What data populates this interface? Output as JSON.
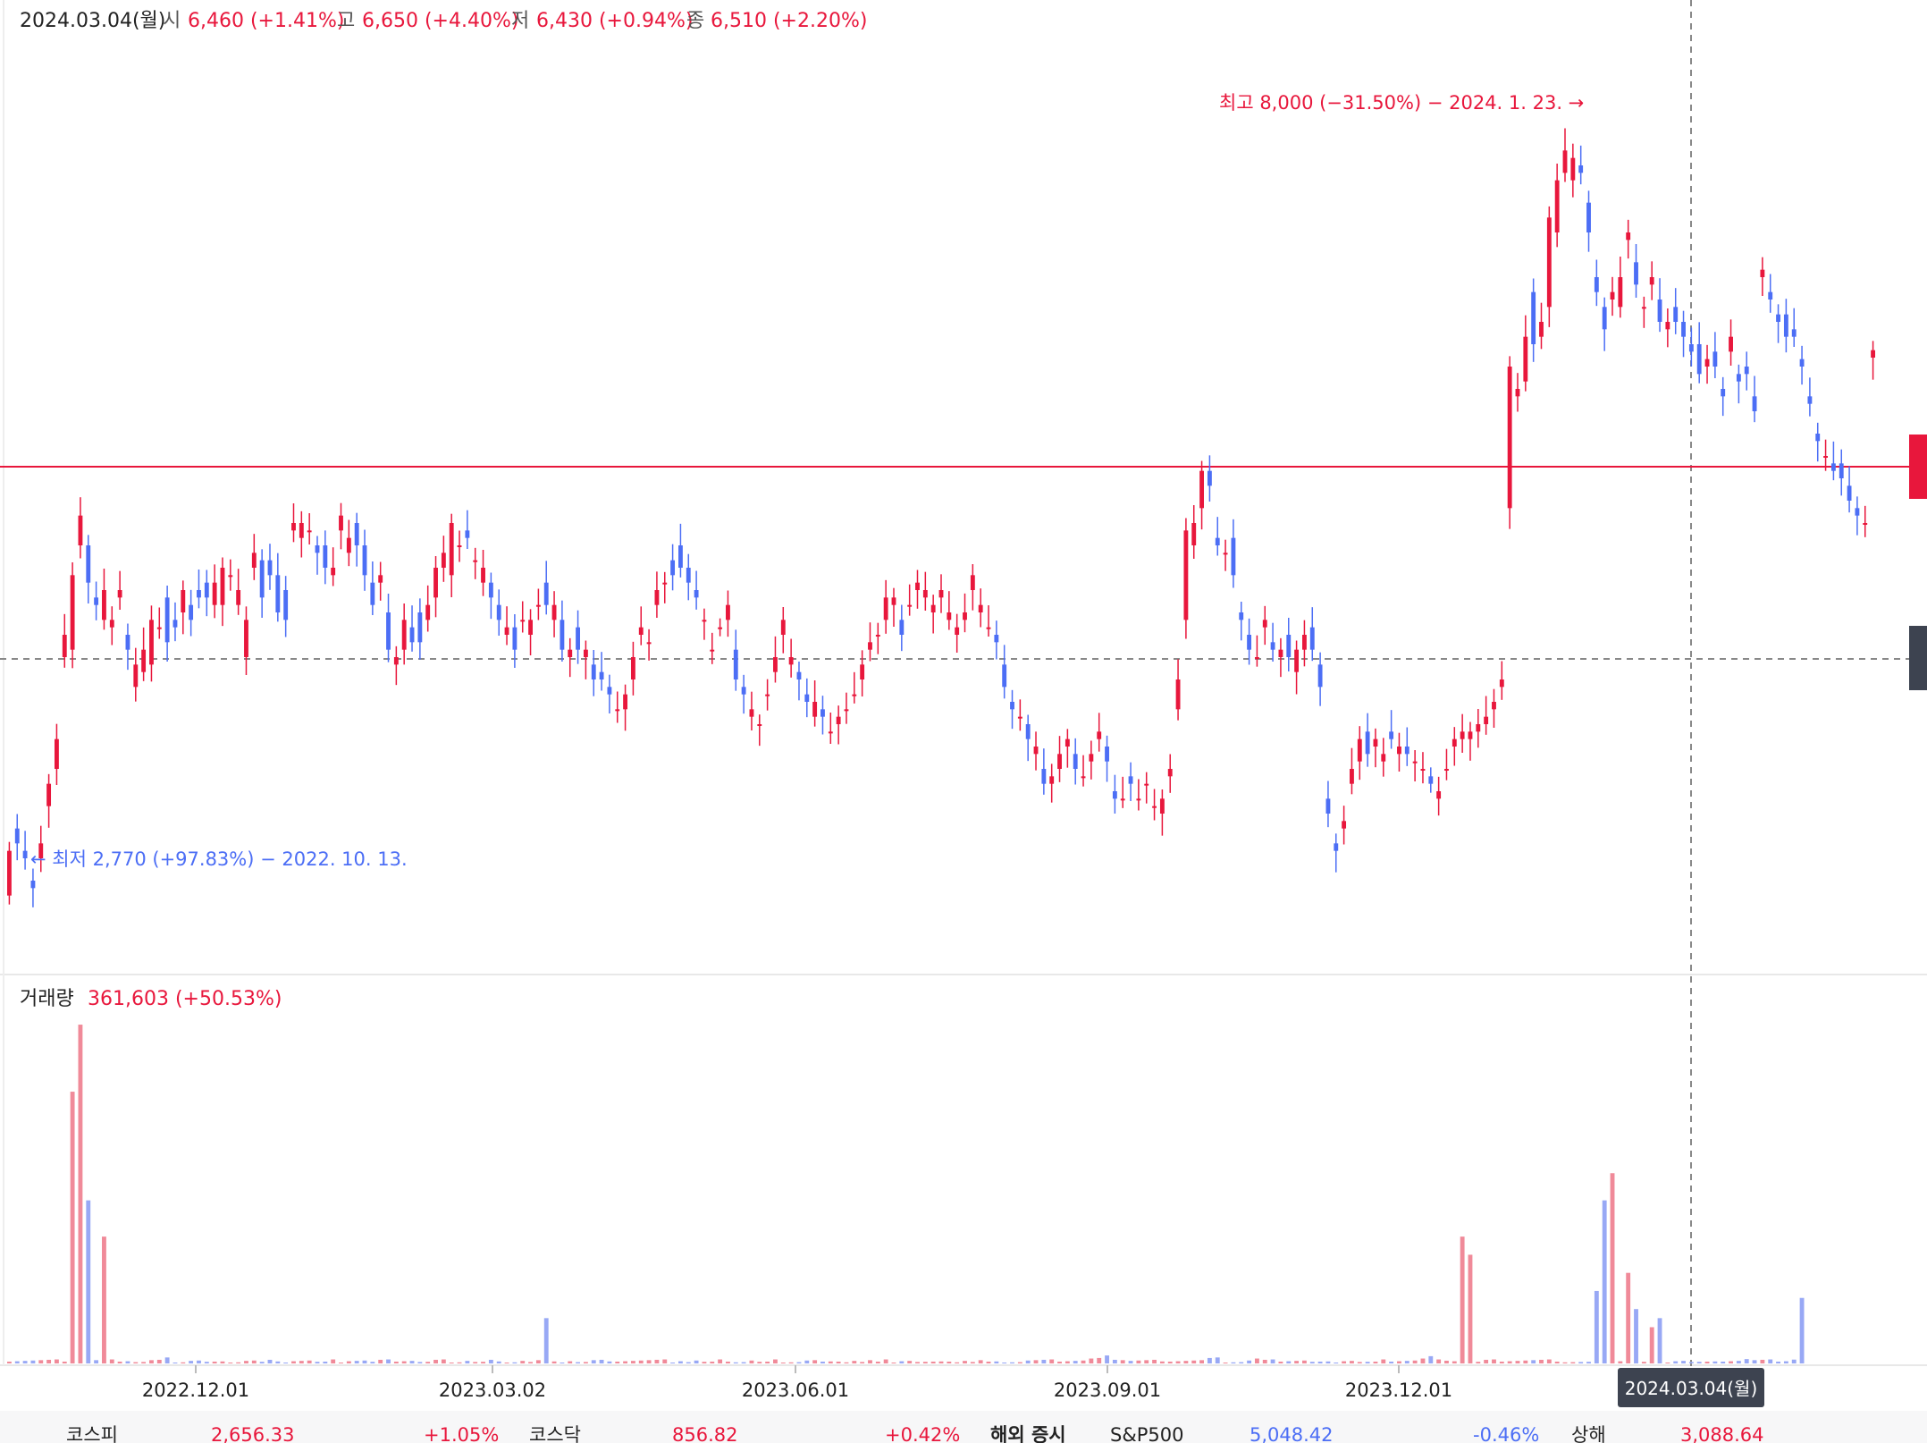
{
  "colors": {
    "up": "#e8173c",
    "down": "#4c6ef5",
    "up_volume": "#f08a99",
    "down_volume": "#98a8f5",
    "neutral": "#888888",
    "text": "#222222"
  },
  "header": {
    "date": "2024.03.04(월)",
    "open_label": "시",
    "open_value": "6,460 (+1.41%)",
    "high_label": "고",
    "high_value": "6,650 (+4.40%)",
    "low_label": "저",
    "low_value": "6,430 (+0.94%)",
    "close_label": "종",
    "close_value": "6,510 (+2.20%)"
  },
  "annotations": {
    "high": "최고 8,000 (−31.50%) − 2024. 1. 23. →",
    "low": "← 최저 2,770 (+97.83%) − 2022. 10. 13."
  },
  "volume_header": {
    "label": "거래량",
    "value": "361,603 (+50.53%)"
  },
  "crosshair_label": "2024.03.04(월)",
  "bottom_ticker": [
    {
      "label": "코스피",
      "value": "2,656.33",
      "change": "+1.05%"
    },
    {
      "label": "코스닥",
      "value": "856.82",
      "change": "+0.42%"
    },
    {
      "label": "해외 증시",
      "value": "",
      "change": ""
    },
    {
      "label": "S&P500",
      "value": "5,048.42",
      "change": "-0.46%"
    },
    {
      "label": "상해",
      "value": "3,088.64",
      "change": ""
    }
  ],
  "chart_data": {
    "type": "candlestick",
    "x_tick_labels": [
      "2022.12.01",
      "2023.03.02",
      "2023.06.01",
      "2023.09.01",
      "2023.12.01"
    ],
    "period": [
      "2022.10",
      "2024.03"
    ],
    "ylim": [
      2500,
      8500
    ],
    "volume_ylim": [
      0,
      1900000
    ],
    "price_series": [
      [
        2850,
        3150
      ],
      [
        3300,
        3200
      ],
      [
        3150,
        3100
      ],
      [
        2950,
        2900
      ],
      [
        3100,
        3200
      ],
      [
        3450,
        3600
      ],
      [
        3700,
        3900
      ],
      [
        4450,
        4600
      ],
      [
        4500,
        5000
      ],
      [
        5200,
        5400
      ],
      [
        5200,
        4950
      ],
      [
        4850,
        4800
      ],
      [
        4700,
        4900
      ],
      [
        4650,
        4700
      ],
      [
        4850,
        4900
      ],
      [
        4600,
        4500
      ],
      [
        4250,
        4400
      ],
      [
        4350,
        4500
      ],
      [
        4400,
        4700
      ],
      [
        4650,
        4650
      ],
      [
        4850,
        4550
      ],
      [
        4700,
        4650
      ],
      [
        4750,
        4900
      ],
      [
        4800,
        4700
      ],
      [
        4900,
        4850
      ],
      [
        4950,
        4850
      ],
      [
        4800,
        4950
      ],
      [
        4800,
        5050
      ],
      [
        5000,
        5000
      ],
      [
        4800,
        4900
      ],
      [
        4450,
        4700
      ],
      [
        5050,
        5150
      ],
      [
        5100,
        4850
      ],
      [
        5100,
        5000
      ],
      [
        5000,
        4750
      ],
      [
        4900,
        4700
      ],
      [
        5300,
        5350
      ],
      [
        5250,
        5350
      ],
      [
        5300,
        5300
      ],
      [
        5200,
        5150
      ],
      [
        5200,
        5050
      ],
      [
        5000,
        5050
      ],
      [
        5300,
        5400
      ],
      [
        5150,
        5250
      ],
      [
        5350,
        5200
      ],
      [
        5200,
        5000
      ],
      [
        4950,
        4800
      ],
      [
        4950,
        5000
      ],
      [
        4750,
        4500
      ],
      [
        4400,
        4450
      ],
      [
        4500,
        4700
      ],
      [
        4650,
        4550
      ],
      [
        4750,
        4550
      ],
      [
        4700,
        4800
      ],
      [
        4850,
        5050
      ],
      [
        5050,
        5150
      ],
      [
        5000,
        5350
      ],
      [
        5200,
        5200
      ],
      [
        5300,
        5250
      ],
      [
        5100,
        5100
      ],
      [
        4950,
        5050
      ],
      [
        4950,
        4850
      ],
      [
        4800,
        4700
      ],
      [
        4600,
        4650
      ],
      [
        4650,
        4500
      ],
      [
        4700,
        4700
      ],
      [
        4600,
        4700
      ],
      [
        4800,
        4800
      ],
      [
        4950,
        4800
      ],
      [
        4700,
        4800
      ],
      [
        4700,
        4500
      ],
      [
        4450,
        4500
      ],
      [
        4650,
        4500
      ],
      [
        4450,
        4500
      ],
      [
        4400,
        4300
      ],
      [
        4350,
        4300
      ],
      [
        4250,
        4200
      ],
      [
        4100,
        4100
      ],
      [
        4100,
        4200
      ],
      [
        4300,
        4450
      ],
      [
        4600,
        4650
      ],
      [
        4550,
        4550
      ],
      [
        4800,
        4900
      ],
      [
        4950,
        4950
      ],
      [
        5100,
        5000
      ],
      [
        5200,
        5050
      ],
      [
        5050,
        4950
      ],
      [
        4900,
        4850
      ],
      [
        4700,
        4700
      ],
      [
        4500,
        4500
      ],
      [
        4650,
        4650
      ],
      [
        4700,
        4800
      ],
      [
        4500,
        4300
      ],
      [
        4250,
        4200
      ],
      [
        4050,
        4100
      ],
      [
        4000,
        4000
      ],
      [
        4200,
        4200
      ],
      [
        4350,
        4450
      ],
      [
        4600,
        4700
      ],
      [
        4400,
        4450
      ],
      [
        4350,
        4300
      ],
      [
        4200,
        4150
      ],
      [
        4050,
        4150
      ],
      [
        4100,
        4050
      ],
      [
        3950,
        3950
      ],
      [
        4000,
        4050
      ],
      [
        4100,
        4100
      ],
      [
        4200,
        4200
      ],
      [
        4300,
        4400
      ],
      [
        4500,
        4550
      ],
      [
        4600,
        4600
      ],
      [
        4700,
        4850
      ],
      [
        4800,
        4850
      ],
      [
        4700,
        4600
      ],
      [
        4800,
        4800
      ],
      [
        4900,
        4950
      ],
      [
        4850,
        4900
      ],
      [
        4750,
        4800
      ],
      [
        4850,
        4900
      ],
      [
        4700,
        4750
      ],
      [
        4600,
        4650
      ],
      [
        4700,
        4750
      ],
      [
        4900,
        5000
      ],
      [
        4750,
        4800
      ],
      [
        4650,
        4650
      ],
      [
        4600,
        4550
      ],
      [
        4400,
        4250
      ],
      [
        4150,
        4100
      ],
      [
        4050,
        4050
      ],
      [
        4000,
        3900
      ],
      [
        3800,
        3850
      ],
      [
        3700,
        3600
      ],
      [
        3600,
        3650
      ],
      [
        3700,
        3800
      ],
      [
        3850,
        3900
      ],
      [
        3800,
        3700
      ],
      [
        3650,
        3650
      ],
      [
        3750,
        3800
      ],
      [
        3900,
        3950
      ],
      [
        3850,
        3750
      ],
      [
        3550,
        3500
      ],
      [
        3500,
        3500
      ],
      [
        3650,
        3600
      ],
      [
        3500,
        3500
      ],
      [
        3600,
        3600
      ],
      [
        3450,
        3450
      ],
      [
        3400,
        3500
      ],
      [
        3650,
        3700
      ],
      [
        4100,
        4300
      ],
      [
        4700,
        5300
      ],
      [
        5200,
        5350
      ],
      [
        5450,
        5700
      ],
      [
        5700,
        5600
      ],
      [
        5250,
        5200
      ],
      [
        5150,
        5150
      ],
      [
        5250,
        5000
      ],
      [
        4750,
        4700
      ],
      [
        4600,
        4500
      ],
      [
        4450,
        4450
      ],
      [
        4650,
        4700
      ],
      [
        4550,
        4500
      ],
      [
        4450,
        4500
      ],
      [
        4600,
        4450
      ],
      [
        4350,
        4500
      ],
      [
        4500,
        4600
      ],
      [
        4650,
        4500
      ],
      [
        4400,
        4250
      ],
      [
        3500,
        3400
      ],
      [
        3200,
        3150
      ],
      [
        3300,
        3350
      ],
      [
        3600,
        3700
      ],
      [
        3750,
        3900
      ],
      [
        3950,
        3800
      ],
      [
        3850,
        3900
      ],
      [
        3750,
        3800
      ],
      [
        3950,
        3900
      ],
      [
        3800,
        3850
      ],
      [
        3850,
        3800
      ],
      [
        3750,
        3750
      ],
      [
        3700,
        3700
      ],
      [
        3650,
        3600
      ],
      [
        3500,
        3550
      ],
      [
        3700,
        3700
      ],
      [
        3850,
        3900
      ],
      [
        3900,
        3950
      ],
      [
        3900,
        3950
      ],
      [
        3950,
        4000
      ],
      [
        4000,
        4050
      ],
      [
        4100,
        4150
      ],
      [
        4250,
        4300
      ],
      [
        5450,
        6400
      ],
      [
        6200,
        6250
      ],
      [
        6300,
        6600
      ],
      [
        6900,
        6550
      ],
      [
        6600,
        6700
      ],
      [
        6800,
        7400
      ],
      [
        7300,
        7650
      ],
      [
        7700,
        7850
      ],
      [
        7650,
        7800
      ],
      [
        7750,
        7700
      ],
      [
        7500,
        7300
      ],
      [
        7000,
        6900
      ],
      [
        6800,
        6650
      ],
      [
        6850,
        6900
      ],
      [
        6800,
        7000
      ],
      [
        7250,
        7300
      ],
      [
        7100,
        6950
      ],
      [
        6800,
        6800
      ],
      [
        6950,
        7000
      ],
      [
        6850,
        6700
      ],
      [
        6650,
        6700
      ],
      [
        6800,
        6700
      ],
      [
        6700,
        6600
      ],
      [
        6550,
        6500
      ],
      [
        6550,
        6350
      ],
      [
        6400,
        6450
      ],
      [
        6500,
        6400
      ],
      [
        6250,
        6200
      ],
      [
        6500,
        6600
      ],
      [
        6350,
        6300
      ],
      [
        6400,
        6350
      ],
      [
        6200,
        6100
      ],
      [
        7000,
        7050
      ],
      [
        6900,
        6850
      ],
      [
        6750,
        6700
      ],
      [
        6750,
        6600
      ],
      [
        6650,
        6600
      ],
      [
        6450,
        6400
      ],
      [
        6200,
        6150
      ],
      [
        5950,
        5900
      ],
      [
        5800,
        5800
      ],
      [
        5750,
        5700
      ],
      [
        5750,
        5650
      ],
      [
        5600,
        5500
      ],
      [
        5450,
        5400
      ],
      [
        5350,
        5350
      ],
      [
        6460,
        6510
      ]
    ],
    "volume_series": [
      2000,
      2000,
      2000,
      2000,
      2000,
      2000,
      2000,
      2000,
      2000,
      2000,
      2000,
      2000,
      2000,
      2000,
      2000,
      2000,
      1000,
      1000,
      2000,
      2000,
      3000,
      1000,
      1000,
      2000,
      2000,
      1000,
      1000,
      1000,
      1000,
      1000,
      2000,
      2000,
      1000,
      2000,
      1000,
      1000,
      2000,
      2000,
      2000,
      1000,
      1000,
      2000,
      1000,
      2000,
      2000,
      2000,
      1000,
      2000,
      2000,
      2000,
      2000,
      2000,
      1000,
      1000,
      2000,
      2000,
      1000,
      1000,
      2000,
      1000,
      1000,
      2000,
      1000,
      1000,
      1000,
      2000,
      1000,
      2000,
      1000,
      1000,
      1000,
      2000,
      1000,
      1000,
      2000,
      2000,
      1000,
      2000,
      2000,
      2000,
      2000,
      2000,
      2000,
      2000,
      1000,
      2000,
      1000,
      2000,
      1000,
      1000,
      2000,
      2000,
      1000,
      1000,
      2000,
      1000,
      1000,
      2000,
      1000,
      1000,
      1000,
      2000,
      2000,
      1000,
      1000,
      2000,
      1000,
      2000,
      1000,
      2000,
      1000,
      2000,
      1000,
      2000,
      2000,
      1000,
      1000,
      1000,
      1000,
      2000,
      1000,
      2000,
      1000,
      2000,
      1000,
      1000,
      1000,
      1000,
      1000,
      2000,
      2000,
      2000,
      2000,
      2000,
      2000,
      2000,
      2000,
      3000,
      3000,
      4000,
      4000,
      3000,
      2000,
      2000,
      2000,
      2000,
      1000,
      2000,
      2000,
      2000,
      2000,
      2000,
      3000,
      3000,
      1000,
      1000,
      1000,
      2000,
      3000,
      2000,
      2000,
      2000,
      2000,
      2000,
      2000,
      1000,
      1000,
      1000,
      1000,
      2000,
      2000,
      1000,
      1000,
      1000,
      2000,
      2000,
      2000,
      2000,
      2000,
      3000,
      4000,
      2000,
      3000,
      2000,
      2000,
      2000,
      1000,
      2000,
      2000,
      2000,
      2000,
      2000,
      2000,
      2000,
      2000,
      2000,
      2000,
      1000,
      1000,
      1000,
      1000,
      1000,
      2000,
      2000,
      2000,
      2000,
      2000,
      1000,
      1000,
      2000,
      1000,
      2000,
      2000,
      1000,
      1000,
      1000,
      1000,
      2000,
      2000,
      2000,
      3000,
      2000,
      2000,
      2000,
      2000,
      2000,
      3000,
      361603
    ]
  }
}
